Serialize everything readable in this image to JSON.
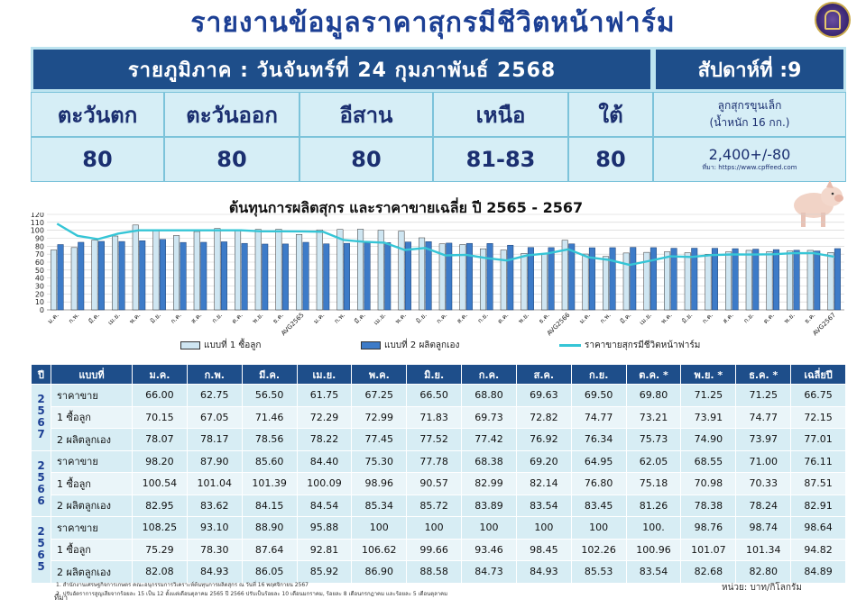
{
  "title": "รายงานข้อมูลราคาสุกรมีชีวิตหน้าฟาร์ม",
  "header": {
    "region_date": "รายภูมิภาค : วันจันทร์ที่ 24 กุมภาพันธ์ 2568",
    "week": "สัปดาห์ที่ :9",
    "regions": [
      "ตะวันตก",
      "ตะวันออก",
      "อีสาน",
      "เหนือ",
      "ใต้"
    ],
    "prices": [
      "80",
      "80",
      "80",
      "81-83",
      "80"
    ],
    "piglet_label_1": "ลูกสุกรขุนเล็ก",
    "piglet_label_2": "(น้ำหนัก 16 กก.)",
    "piglet_price": "2,400+/-80",
    "piglet_source": "ที่มา: https://www.cpffeed.com"
  },
  "chart_data": {
    "type": "bar",
    "title": "ต้นทุนการผลิตสุกร และราคาขายเฉลี่ย ปี 2565 - 2567",
    "categories": [
      "ม.ค.",
      "ก.พ.",
      "มี.ค.",
      "เม.ย.",
      "พ.ค.",
      "มิ.ย.",
      "ก.ค.",
      "ส.ค.",
      "ก.ย.",
      "ต.ค.",
      "พ.ย.",
      "ธ.ค.",
      "AVG2565",
      "ม.ค.",
      "ก.พ.",
      "มี.ค.",
      "เม.ย.",
      "พ.ค.",
      "มิ.ย.",
      "ก.ค.",
      "ส.ค.",
      "ก.ย.",
      "ต.ค.",
      "พ.ย.",
      "ธ.ค.",
      "AVG2566",
      "ม.ค.",
      "ก.พ.",
      "มี.ค.",
      "เม.ย.",
      "พ.ค.",
      "มิ.ย.",
      "ก.ค.",
      "ส.ค.",
      "ก.ย.",
      "ต.ค.",
      "พ.ย.",
      "ธ.ค.",
      "AVG2567"
    ],
    "series": [
      {
        "name": "แบบที่ 1 ซื้อลูก",
        "type": "bar",
        "values": [
          75.29,
          78.3,
          87.64,
          92.81,
          106.62,
          99.66,
          93.46,
          98.45,
          102.26,
          100.96,
          101.07,
          101.34,
          94.82,
          100.54,
          101.04,
          101.39,
          100.09,
          98.96,
          90.57,
          82.99,
          82.14,
          76.8,
          75.18,
          70.98,
          70.33,
          87.51,
          70.15,
          67.05,
          71.46,
          72.29,
          72.99,
          71.83,
          69.73,
          72.82,
          74.77,
          73.21,
          73.91,
          74.77,
          72.15
        ]
      },
      {
        "name": "แบบที่ 2 ผลิตลูกเอง",
        "type": "bar",
        "values": [
          82.08,
          84.93,
          86.05,
          85.92,
          86.9,
          88.58,
          84.73,
          84.93,
          85.53,
          83.54,
          82.68,
          82.8,
          84.89,
          82.95,
          83.62,
          84.15,
          84.54,
          85.34,
          85.72,
          83.89,
          83.54,
          83.45,
          81.26,
          78.38,
          78.24,
          82.91,
          78.07,
          78.17,
          78.56,
          78.22,
          77.45,
          77.52,
          77.42,
          76.92,
          76.34,
          75.73,
          74.9,
          73.97,
          77.01
        ]
      },
      {
        "name": "ราคาขายสุกรมีชีวิตหน้าฟาร์ม",
        "type": "line",
        "values": [
          108.25,
          93.1,
          88.9,
          95.88,
          100,
          100,
          100,
          100,
          100,
          100,
          98.76,
          98.74,
          98.64,
          98.2,
          87.9,
          85.6,
          84.4,
          75.3,
          77.78,
          68.38,
          69.2,
          64.95,
          62.05,
          68.55,
          71.0,
          76.11,
          66.0,
          62.75,
          56.5,
          61.75,
          67.25,
          66.5,
          68.8,
          69.63,
          69.5,
          69.8,
          71.25,
          71.25,
          66.75
        ]
      }
    ],
    "ylim": [
      0,
      120
    ],
    "yticks": [
      "0",
      "10",
      "20",
      "30",
      "40",
      "50",
      "60",
      "70",
      "80",
      "90",
      "100",
      "110",
      "120"
    ],
    "grid": true,
    "legend_position": "bottom"
  },
  "colors": {
    "bar1": "#cfe6f2",
    "bar2": "#3d7bc8",
    "line": "#35c5d6",
    "header_dark": "#1e4e8a"
  },
  "table": {
    "headers": [
      "ปี",
      "แบบที่",
      "ม.ค.",
      "ก.พ.",
      "มี.ค.",
      "เม.ย.",
      "พ.ค.",
      "มิ.ย.",
      "ก.ค.",
      "ส.ค.",
      "ก.ย.",
      "ต.ค. *",
      "พ.ย. *",
      "ธ.ค. *",
      "เฉลี่ยปี"
    ],
    "groups": [
      {
        "year": [
          "2",
          "5",
          "6",
          "7"
        ],
        "rows": [
          {
            "label": "ราคาขาย",
            "values": [
              "66.00",
              "62.75",
              "56.50",
              "61.75",
              "67.25",
              "66.50",
              "68.80",
              "69.63",
              "69.50",
              "69.80",
              "71.25",
              "71.25",
              "66.75"
            ]
          },
          {
            "label": "1 ซื้อลูก",
            "values": [
              "70.15",
              "67.05",
              "71.46",
              "72.29",
              "72.99",
              "71.83",
              "69.73",
              "72.82",
              "74.77",
              "73.21",
              "73.91",
              "74.77",
              "72.15"
            ]
          },
          {
            "label": "2 ผลิตลูกเอง",
            "values": [
              "78.07",
              "78.17",
              "78.56",
              "78.22",
              "77.45",
              "77.52",
              "77.42",
              "76.92",
              "76.34",
              "75.73",
              "74.90",
              "73.97",
              "77.01"
            ]
          }
        ]
      },
      {
        "year": [
          "2",
          "5",
          "6",
          "6"
        ],
        "rows": [
          {
            "label": "ราคาขาย",
            "values": [
              "98.20",
              "87.90",
              "85.60",
              "84.40",
              "75.30",
              "77.78",
              "68.38",
              "69.20",
              "64.95",
              "62.05",
              "68.55",
              "71.00",
              "76.11"
            ]
          },
          {
            "label": "1 ซื้อลูก",
            "values": [
              "100.54",
              "101.04",
              "101.39",
              "100.09",
              "98.96",
              "90.57",
              "82.99",
              "82.14",
              "76.80",
              "75.18",
              "70.98",
              "70.33",
              "87.51"
            ]
          },
          {
            "label": "2 ผลิตลูกเอง",
            "values": [
              "82.95",
              "83.62",
              "84.15",
              "84.54",
              "85.34",
              "85.72",
              "83.89",
              "83.54",
              "83.45",
              "81.26",
              "78.38",
              "78.24",
              "82.91"
            ]
          }
        ]
      },
      {
        "year": [
          "2",
          "5",
          "6",
          "5"
        ],
        "rows": [
          {
            "label": "ราคาขาย",
            "values": [
              "108.25",
              "93.10",
              "88.90",
              "95.88",
              "100",
              "100",
              "100",
              "100",
              "100",
              "100.",
              "98.76",
              "98.74",
              "98.64"
            ]
          },
          {
            "label": "1 ซื้อลูก",
            "values": [
              "75.29",
              "78.30",
              "87.64",
              "92.81",
              "106.62",
              "99.66",
              "93.46",
              "98.45",
              "102.26",
              "100.96",
              "101.07",
              "101.34",
              "94.82"
            ]
          },
          {
            "label": "2 ผลิตลูกเอง",
            "values": [
              "82.08",
              "84.93",
              "86.05",
              "85.92",
              "86.90",
              "88.58",
              "84.73",
              "84.93",
              "85.53",
              "83.54",
              "82.68",
              "82.80",
              "84.89"
            ]
          }
        ]
      }
    ]
  },
  "footnotes": {
    "line1": "1. สำนักงานเศรษฐกิจการเกษตร คณะอนุกรรมการวิเคราะห์ต้นทุนการผลิตสุกร ณ วันที่ 16 พฤศจิกายน 2567",
    "line2": "2. ปรับอัตราการสูญเสียจากร้อยละ 15 เป็น 12 ตั้งแต่เดือนตุลาคม 2565 ปี 2566 ปรับเป็นร้อยละ 10 เดือนมกราคม, ร้อยละ 8 เดือนกรกฎาคม และร้อยละ 5 เดือนตุลาคม",
    "note_label": "ที่มา",
    "unit": "หน่วย: บาท/กิโลกรัม"
  }
}
